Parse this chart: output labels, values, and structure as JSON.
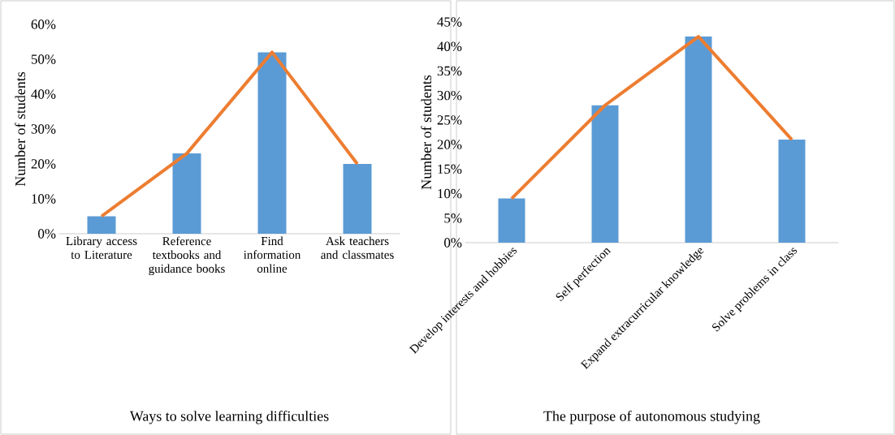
{
  "chart_data": [
    {
      "type": "bar",
      "xlabel": "Ways to solve learning difficulties",
      "ylabel": "Number of students",
      "categories": [
        "Library access to Literature",
        "Reference textbooks and guidance books",
        "Find information online",
        "Ask teachers and classmates"
      ],
      "series": [
        {
          "color": "#5b9bd5",
          "values": [
            5,
            23,
            52,
            20
          ]
        },
        {
          "type": "line",
          "color": "#ed7d31",
          "values": [
            5,
            23,
            52,
            20
          ]
        }
      ],
      "ylim": [
        0,
        60
      ],
      "yticks": [
        {
          "value": 0,
          "label": "0%"
        },
        {
          "value": 10,
          "label": "10%"
        },
        {
          "value": 20,
          "label": "20%"
        },
        {
          "value": 30,
          "label": "30%"
        },
        {
          "value": 40,
          "label": "40%"
        },
        {
          "value": 50,
          "label": "50%"
        },
        {
          "value": 60,
          "label": "60%"
        }
      ],
      "grid": false,
      "marker": "none"
    },
    {
      "type": "bar",
      "xlabel": "The purpose of autonomous studying",
      "ylabel": "Number of students",
      "categories": [
        "Develop interests and hobbies",
        "Self perfection",
        "Expand extracurricular knowledge",
        "Solve problems in class"
      ],
      "series": [
        {
          "color": "#5b9bd5",
          "values": [
            9,
            28,
            42,
            21
          ]
        },
        {
          "type": "line",
          "color": "#ed7d31",
          "values": [
            9,
            28,
            42,
            21
          ]
        }
      ],
      "ylim": [
        0,
        45
      ],
      "yticks": [
        {
          "value": 0,
          "label": "0%"
        },
        {
          "value": 5,
          "label": "5%"
        },
        {
          "value": 10,
          "label": "10%"
        },
        {
          "value": 15,
          "label": "15%"
        },
        {
          "value": 20,
          "label": "20%"
        },
        {
          "value": 25,
          "label": "25%"
        },
        {
          "value": 30,
          "label": "30%"
        },
        {
          "value": 35,
          "label": "35%"
        },
        {
          "value": 40,
          "label": "40%"
        },
        {
          "value": 45,
          "label": "45%"
        }
      ],
      "grid": false,
      "marker": "none"
    }
  ]
}
